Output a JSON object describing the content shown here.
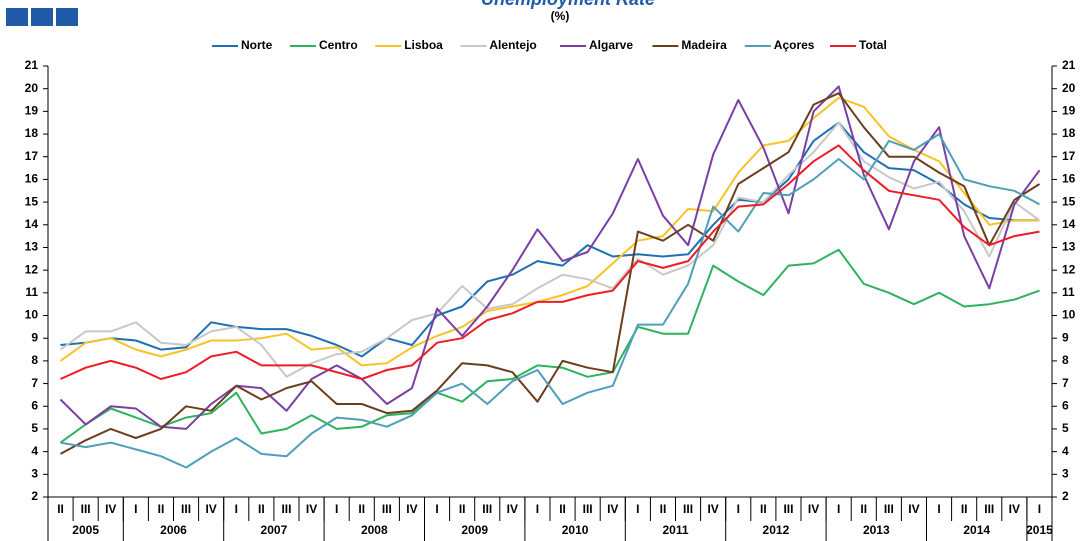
{
  "chart_data": {
    "type": "line",
    "title": "Unemployment Rate",
    "subtitle": "(%)",
    "categories": [
      {
        "quarter": "II",
        "year": "2005"
      },
      {
        "quarter": "III",
        "year": "2005"
      },
      {
        "quarter": "IV",
        "year": "2005"
      },
      {
        "quarter": "I",
        "year": "2006"
      },
      {
        "quarter": "II",
        "year": "2006"
      },
      {
        "quarter": "III",
        "year": "2006"
      },
      {
        "quarter": "IV",
        "year": "2006"
      },
      {
        "quarter": "I",
        "year": "2007"
      },
      {
        "quarter": "II",
        "year": "2007"
      },
      {
        "quarter": "III",
        "year": "2007"
      },
      {
        "quarter": "IV",
        "year": "2007"
      },
      {
        "quarter": "I",
        "year": "2008"
      },
      {
        "quarter": "II",
        "year": "2008"
      },
      {
        "quarter": "III",
        "year": "2008"
      },
      {
        "quarter": "IV",
        "year": "2008"
      },
      {
        "quarter": "I",
        "year": "2009"
      },
      {
        "quarter": "II",
        "year": "2009"
      },
      {
        "quarter": "III",
        "year": "2009"
      },
      {
        "quarter": "IV",
        "year": "2009"
      },
      {
        "quarter": "I",
        "year": "2010"
      },
      {
        "quarter": "II",
        "year": "2010"
      },
      {
        "quarter": "III",
        "year": "2010"
      },
      {
        "quarter": "IV",
        "year": "2010"
      },
      {
        "quarter": "I",
        "year": "2011"
      },
      {
        "quarter": "II",
        "year": "2011"
      },
      {
        "quarter": "III",
        "year": "2011"
      },
      {
        "quarter": "IV",
        "year": "2011"
      },
      {
        "quarter": "I",
        "year": "2012"
      },
      {
        "quarter": "II",
        "year": "2012"
      },
      {
        "quarter": "III",
        "year": "2012"
      },
      {
        "quarter": "IV",
        "year": "2012"
      },
      {
        "quarter": "I",
        "year": "2013"
      },
      {
        "quarter": "II",
        "year": "2013"
      },
      {
        "quarter": "III",
        "year": "2013"
      },
      {
        "quarter": "IV",
        "year": "2013"
      },
      {
        "quarter": "I",
        "year": "2014"
      },
      {
        "quarter": "II",
        "year": "2014"
      },
      {
        "quarter": "III",
        "year": "2014"
      },
      {
        "quarter": "IV",
        "year": "2014"
      },
      {
        "quarter": "I",
        "year": "2015"
      }
    ],
    "series": [
      {
        "name": "Norte",
        "color": "#1f6fb5",
        "values": [
          8.7,
          8.8,
          9.0,
          8.9,
          8.5,
          8.6,
          9.7,
          9.5,
          9.4,
          9.4,
          9.1,
          8.7,
          8.2,
          9.0,
          8.7,
          10.0,
          10.4,
          11.5,
          11.8,
          12.4,
          12.2,
          13.1,
          12.6,
          12.7,
          12.6,
          12.7,
          14.0,
          15.1,
          15.0,
          16.0,
          17.7,
          18.5,
          17.2,
          16.5,
          16.4,
          15.8,
          14.9,
          14.3,
          14.2,
          14.2
        ]
      },
      {
        "name": "Centro",
        "color": "#2db35d",
        "values": [
          4.4,
          5.2,
          5.9,
          5.5,
          5.1,
          5.5,
          5.7,
          6.6,
          4.8,
          5.0,
          5.6,
          5.0,
          5.1,
          5.6,
          5.7,
          6.6,
          6.2,
          7.1,
          7.2,
          7.8,
          7.7,
          7.3,
          7.5,
          9.5,
          9.2,
          9.2,
          12.2,
          11.5,
          10.9,
          12.2,
          12.3,
          12.9,
          11.4,
          11.0,
          10.5,
          11.0,
          10.4,
          10.5,
          10.7,
          11.1
        ]
      },
      {
        "name": "Lisboa",
        "color": "#f7c325",
        "values": [
          8.0,
          8.8,
          9.0,
          8.5,
          8.2,
          8.5,
          8.9,
          8.9,
          9.0,
          9.2,
          8.5,
          8.6,
          7.8,
          7.9,
          8.6,
          9.1,
          9.5,
          10.2,
          10.4,
          10.6,
          10.9,
          11.3,
          12.3,
          13.3,
          13.5,
          14.7,
          14.6,
          16.3,
          17.5,
          17.7,
          18.7,
          19.6,
          19.2,
          17.9,
          17.3,
          16.8,
          15.4,
          14.0,
          14.2,
          14.2
        ]
      },
      {
        "name": "Alentejo",
        "color": "#c8c8c8",
        "values": [
          8.5,
          9.3,
          9.3,
          9.7,
          8.8,
          8.7,
          9.3,
          9.5,
          8.7,
          7.3,
          7.9,
          8.3,
          8.4,
          9.0,
          9.8,
          10.1,
          11.3,
          10.3,
          10.5,
          11.2,
          11.8,
          11.6,
          11.2,
          12.5,
          11.8,
          12.2,
          13.1,
          15.2,
          15.0,
          16.2,
          17.2,
          18.5,
          16.8,
          16.1,
          15.6,
          15.9,
          14.6,
          12.6,
          15.0,
          14.2
        ]
      },
      {
        "name": "Algarve",
        "color": "#7a3fa5",
        "values": [
          6.3,
          5.2,
          6.0,
          5.9,
          5.1,
          5.0,
          6.1,
          6.9,
          6.8,
          5.8,
          7.2,
          7.8,
          7.2,
          6.1,
          6.8,
          10.3,
          9.1,
          10.4,
          12.0,
          13.8,
          12.4,
          12.8,
          14.5,
          16.9,
          14.4,
          13.1,
          17.1,
          19.5,
          17.4,
          14.5,
          19.0,
          20.1,
          16.2,
          13.8,
          16.8,
          18.3,
          13.5,
          11.2,
          14.9,
          16.4
        ]
      },
      {
        "name": "Madeira",
        "color": "#6b3e1e",
        "values": [
          3.9,
          4.5,
          5.0,
          4.6,
          5.0,
          6.0,
          5.8,
          6.9,
          6.3,
          6.8,
          7.1,
          6.1,
          6.1,
          5.7,
          5.8,
          6.7,
          7.9,
          7.8,
          7.5,
          6.2,
          8.0,
          7.7,
          7.5,
          13.7,
          13.3,
          14.0,
          13.3,
          15.8,
          16.5,
          17.2,
          19.3,
          19.8,
          18.3,
          17.0,
          17.0,
          16.3,
          15.7,
          13.1,
          15.1,
          15.8
        ]
      },
      {
        "name": "Açores",
        "color": "#4f9fb8",
        "values": [
          4.4,
          4.2,
          4.4,
          4.1,
          3.8,
          3.3,
          4.0,
          4.6,
          3.9,
          3.8,
          4.8,
          5.5,
          5.4,
          5.1,
          5.6,
          6.6,
          7.0,
          6.1,
          7.1,
          7.6,
          6.1,
          6.6,
          6.9,
          9.6,
          9.6,
          11.4,
          14.8,
          13.7,
          15.4,
          15.3,
          16.0,
          16.9,
          16.0,
          17.7,
          17.3,
          18.0,
          16.0,
          15.7,
          15.5,
          14.9
        ]
      },
      {
        "name": "Total",
        "color": "#ee1c25",
        "values": [
          7.2,
          7.7,
          8.0,
          7.7,
          7.2,
          7.5,
          8.2,
          8.4,
          7.8,
          7.8,
          7.8,
          7.5,
          7.2,
          7.6,
          7.8,
          8.8,
          9.0,
          9.8,
          10.1,
          10.6,
          10.6,
          10.9,
          11.1,
          12.4,
          12.1,
          12.4,
          13.7,
          14.8,
          14.9,
          15.8,
          16.8,
          17.5,
          16.4,
          15.5,
          15.3,
          15.1,
          13.9,
          13.1,
          13.5,
          13.7
        ]
      }
    ],
    "ylim": [
      2,
      21
    ],
    "yticks": [
      2,
      3,
      4,
      5,
      6,
      7,
      8,
      9,
      10,
      11,
      12,
      13,
      14,
      15,
      16,
      17,
      18,
      19,
      20,
      21
    ],
    "legend": "top"
  }
}
